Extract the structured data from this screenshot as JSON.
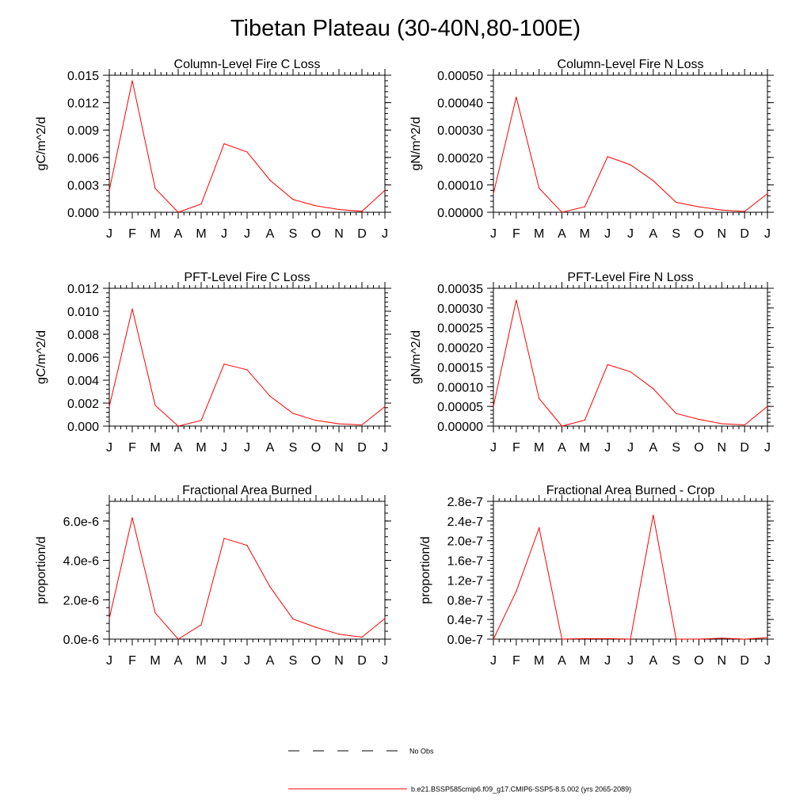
{
  "title": "Tibetan Plateau (30-40N,80-100E)",
  "colors": {
    "model_line": "#ff0000",
    "obs_line": "#000000",
    "axes": "#000000"
  },
  "months": [
    "J",
    "F",
    "M",
    "A",
    "M",
    "J",
    "J",
    "A",
    "S",
    "O",
    "N",
    "D",
    "J"
  ],
  "legend": {
    "obs_label": "No Obs",
    "model_label": "b.e21.BSSP585cmip6.f09_g17.CMIP6-SSP5-8.5.002 (yrs 2065-2089)"
  },
  "chart_data": [
    {
      "type": "line",
      "title": "Column-Level Fire C Loss",
      "ylabel": "gC/m^2/d",
      "ylim": [
        0,
        0.015
      ],
      "yticks": [
        "0.000",
        "0.003",
        "0.006",
        "0.009",
        "0.012",
        "0.015"
      ],
      "x": [
        "J",
        "F",
        "M",
        "A",
        "M",
        "J",
        "J",
        "A",
        "S",
        "O",
        "N",
        "D",
        "J"
      ],
      "series": [
        {
          "name": "b.e21.BSSP585cmip6.f09_g17.CMIP6-SSP5-8.5.002 (yrs 2065-2089)",
          "values": [
            0.0024,
            0.0144,
            0.0026,
            0.0,
            0.0009,
            0.0075,
            0.0066,
            0.0035,
            0.0014,
            0.0007,
            0.0003,
            0.0001,
            0.0024
          ]
        }
      ]
    },
    {
      "type": "line",
      "title": "Column-Level Fire N Loss",
      "ylabel": "gN/m^2/d",
      "ylim": [
        0,
        0.0005
      ],
      "yticks": [
        "0.00000",
        "0.00010",
        "0.00020",
        "0.00030",
        "0.00040",
        "0.00050"
      ],
      "x": [
        "J",
        "F",
        "M",
        "A",
        "M",
        "J",
        "J",
        "A",
        "S",
        "O",
        "N",
        "D",
        "J"
      ],
      "series": [
        {
          "name": "b.e21.BSSP585cmip6.f09_g17.CMIP6-SSP5-8.5.002 (yrs 2065-2089)",
          "values": [
            6.8e-05,
            0.00042,
            8.8e-05,
            0.0,
            2e-05,
            0.000203,
            0.000173,
            0.000115,
            3.6e-05,
            2e-05,
            8e-06,
            3e-06,
            6.8e-05
          ]
        }
      ]
    },
    {
      "type": "line",
      "title": "PFT-Level Fire C Loss",
      "ylabel": "gC/m^2/d",
      "ylim": [
        0,
        0.012
      ],
      "yticks": [
        "0.000",
        "0.002",
        "0.004",
        "0.006",
        "0.008",
        "0.010",
        "0.012"
      ],
      "x": [
        "J",
        "F",
        "M",
        "A",
        "M",
        "J",
        "J",
        "A",
        "S",
        "O",
        "N",
        "D",
        "J"
      ],
      "series": [
        {
          "name": "b.e21.BSSP585cmip6.f09_g17.CMIP6-SSP5-8.5.002 (yrs 2065-2089)",
          "values": [
            0.0017,
            0.0102,
            0.0018,
            0.0,
            0.0005,
            0.0054,
            0.0049,
            0.0026,
            0.0011,
            0.0005,
            0.0002,
            0.0001,
            0.0017
          ]
        }
      ]
    },
    {
      "type": "line",
      "title": "PFT-Level Fire N Loss",
      "ylabel": "gN/m^2/d",
      "ylim": [
        0,
        0.00035
      ],
      "yticks": [
        "0.00000",
        "0.00005",
        "0.00010",
        "0.00015",
        "0.00020",
        "0.00025",
        "0.00030",
        "0.00035"
      ],
      "x": [
        "J",
        "F",
        "M",
        "A",
        "M",
        "J",
        "J",
        "A",
        "S",
        "O",
        "N",
        "D",
        "J"
      ],
      "series": [
        {
          "name": "b.e21.BSSP585cmip6.f09_g17.CMIP6-SSP5-8.5.002 (yrs 2065-2089)",
          "values": [
            5e-05,
            0.00032,
            7e-05,
            0.0,
            1.5e-05,
            0.000156,
            0.000138,
            9.5e-05,
            3.2e-05,
            1.7e-05,
            6e-06,
            3e-06,
            5e-05
          ]
        }
      ]
    },
    {
      "type": "line",
      "title": "Fractional Area Burned",
      "ylabel": "proportion/d",
      "ylim": [
        0,
        7e-06
      ],
      "yticks": [
        "0.0e-6",
        "2.0e-6",
        "4.0e-6",
        "6.0e-6"
      ],
      "x": [
        "J",
        "F",
        "M",
        "A",
        "M",
        "J",
        "J",
        "A",
        "S",
        "O",
        "N",
        "D",
        "J"
      ],
      "series": [
        {
          "name": "b.e21.BSSP585cmip6.f09_g17.CMIP6-SSP5-8.5.002 (yrs 2065-2089)",
          "values": [
            1.05e-06,
            6.17e-06,
            1.33e-06,
            0.0,
            7.3e-07,
            5.12e-06,
            4.76e-06,
            2.65e-06,
            1.02e-06,
            6e-07,
            2.5e-07,
            1e-07,
            1.05e-06
          ]
        }
      ]
    },
    {
      "type": "line",
      "title": "Fractional Area Burned - Crop",
      "ylabel": "proportion/d",
      "ylim": [
        0,
        2.8e-07
      ],
      "yticks": [
        "0.0e-7",
        "0.4e-7",
        "0.8e-7",
        "1.2e-7",
        "1.6e-7",
        "2.0e-7",
        "2.4e-7",
        "2.8e-7"
      ],
      "x": [
        "J",
        "F",
        "M",
        "A",
        "M",
        "J",
        "J",
        "A",
        "S",
        "O",
        "N",
        "D",
        "J"
      ],
      "series": [
        {
          "name": "b.e21.BSSP585cmip6.f09_g17.CMIP6-SSP5-8.5.002 (yrs 2065-2089)",
          "values": [
            0.0,
            9.7e-08,
            2.26e-07,
            0.0,
            1e-09,
            1e-09,
            0.0,
            2.52e-07,
            0.0,
            0.0,
            2e-09,
            0.0,
            3e-09
          ]
        }
      ]
    }
  ]
}
